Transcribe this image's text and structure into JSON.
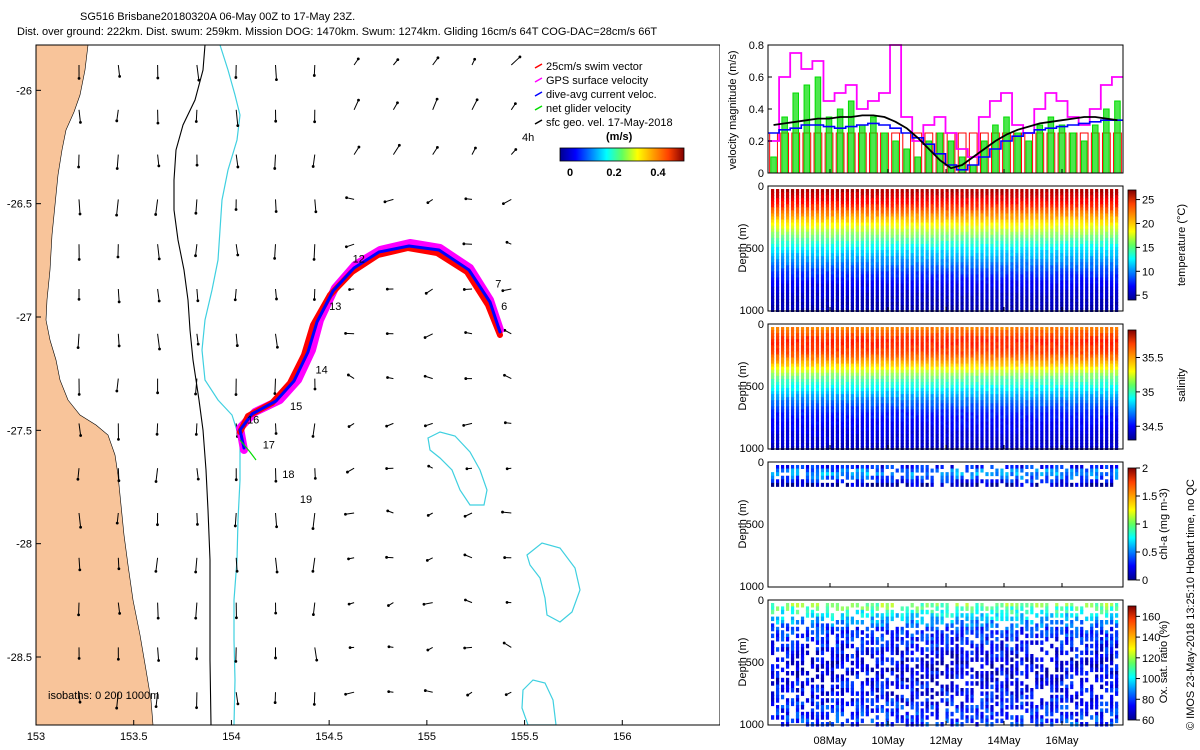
{
  "header": {
    "line1": "SG516 Brisbane20180320A 06-May 00Z to 17-May 23Z.",
    "line2": "Dist. over ground: 222km. Dist. swum: 259km. Mission DOG: 1470km. Swum: 1274km. Gliding 16cm/s 64T COG-DAC=28cm/s 66T"
  },
  "credit": "© IMOS 23-May-2018 13:25:10 Hobart time, no QC",
  "colors": {
    "land": "#f8c49a",
    "isobath_200": "#000000",
    "isobath_1000": "#3fd0e0",
    "swim": "#ff0000",
    "gps": "#ff00ff",
    "dac": "#0000ff",
    "net": "#00dd00",
    "sfc": "#000000"
  },
  "map": {
    "legend": {
      "items": [
        {
          "label": "25cm/s swim vector",
          "color": "#ff0000"
        },
        {
          "label": "GPS surface velocity",
          "color": "#ff00ff"
        },
        {
          "label": "dive-avg current veloc.",
          "color": "#0000ff"
        },
        {
          "label": "net glider velocity",
          "color": "#00dd00"
        },
        {
          "label": "sfc geo. vel. 17-May-2018",
          "color": "#000000"
        }
      ],
      "offset_label": "4h",
      "colorbar_title": "(m/s)",
      "colorbar_ticks": [
        "0",
        "0.2",
        "0.4"
      ]
    },
    "isobath_label": "isobaths: 0   200  1000m"
  },
  "chart_data": [
    {
      "type": "map",
      "title": "SG516 Brisbane20180320A 06-May 00Z to 17-May 23Z.",
      "xlim": [
        153,
        156.5
      ],
      "ylim": [
        -28.8,
        -25.8
      ],
      "xticks": [
        "153",
        "153.5",
        "154",
        "154.5",
        "155",
        "155.5",
        "156"
      ],
      "yticks": [
        "-26",
        "-26.5",
        "-27",
        "-27.5",
        "-28",
        "-28.5"
      ],
      "track": [
        [
          155.35,
          -27.05
        ],
        [
          155.3,
          -26.95
        ],
        [
          155.2,
          -26.8
        ],
        [
          155.1,
          -26.7
        ],
        [
          155.0,
          -26.66
        ],
        [
          154.85,
          -26.65
        ],
        [
          154.7,
          -26.7
        ],
        [
          154.55,
          -26.82
        ],
        [
          154.45,
          -26.98
        ],
        [
          154.38,
          -27.15
        ],
        [
          154.3,
          -27.3
        ],
        [
          154.2,
          -27.42
        ],
        [
          154.05,
          -27.48
        ],
        [
          154.04,
          -27.53
        ],
        [
          154.08,
          -27.6
        ]
      ],
      "day_labels": [
        {
          "label": "6",
          "lon": 155.38,
          "lat": -26.97
        },
        {
          "label": "7",
          "lon": 155.35,
          "lat": -26.87
        },
        {
          "label": "12",
          "lon": 154.62,
          "lat": -26.76
        },
        {
          "label": "13",
          "lon": 154.5,
          "lat": -26.97
        },
        {
          "label": "14",
          "lon": 154.43,
          "lat": -27.25
        },
        {
          "label": "15",
          "lon": 154.3,
          "lat": -27.41
        },
        {
          "label": "16",
          "lon": 154.08,
          "lat": -27.47
        },
        {
          "label": "17",
          "lon": 154.16,
          "lat": -27.58
        },
        {
          "label": "18",
          "lon": 154.26,
          "lat": -27.71
        },
        {
          "label": "19",
          "lon": 154.35,
          "lat": -27.82
        }
      ]
    },
    {
      "type": "line",
      "ylabel": "velocity magnitude (m/s)",
      "ylim": [
        0,
        0.8
      ],
      "yticks": [
        "0",
        "0.2",
        "0.4",
        "0.6",
        "0.8"
      ],
      "x_ticklabels": [
        "08May",
        "10May",
        "12May",
        "14May",
        "16May"
      ],
      "series": [
        {
          "name": "GPS surface velocity",
          "color": "#ff00ff",
          "values": [
            0.2,
            0.6,
            0.75,
            0.65,
            0.7,
            0.45,
            0.5,
            0.55,
            0.4,
            0.45,
            0.5,
            0.8,
            0.35,
            0.2,
            0.3,
            0.35,
            0.25,
            0.15,
            0.1,
            0.35,
            0.45,
            0.5,
            0.3,
            0.25,
            0.4,
            0.5,
            0.45,
            0.35,
            0.3,
            0.4,
            0.55,
            0.6
          ]
        },
        {
          "name": "net glider velocity",
          "color": "#00dd00",
          "values": [
            0.1,
            0.35,
            0.5,
            0.55,
            0.6,
            0.35,
            0.4,
            0.45,
            0.3,
            0.35,
            0.25,
            0.2,
            0.15,
            0.1,
            0.2,
            0.25,
            0.2,
            0.1,
            0.05,
            0.2,
            0.3,
            0.35,
            0.25,
            0.2,
            0.3,
            0.35,
            0.3,
            0.25,
            0.2,
            0.3,
            0.4,
            0.45
          ]
        },
        {
          "name": "dive-avg current veloc.",
          "color": "#0000ff",
          "values": [
            0.25,
            0.27,
            0.28,
            0.3,
            0.3,
            0.29,
            0.28,
            0.29,
            0.3,
            0.31,
            0.3,
            0.28,
            0.25,
            0.22,
            0.18,
            0.12,
            0.05,
            0.02,
            0.05,
            0.1,
            0.15,
            0.2,
            0.23,
            0.25,
            0.27,
            0.28,
            0.29,
            0.3,
            0.31,
            0.32,
            0.33,
            0.33
          ]
        },
        {
          "name": "sfc geo. vel.",
          "color": "#000000",
          "values": [
            0.3,
            0.31,
            0.32,
            0.33,
            0.34,
            0.34,
            0.35,
            0.35,
            0.36,
            0.36,
            0.35,
            0.32,
            0.28,
            0.22,
            0.15,
            0.08,
            0.03,
            0.05,
            0.1,
            0.15,
            0.2,
            0.24,
            0.27,
            0.29,
            0.31,
            0.32,
            0.33,
            0.34,
            0.35,
            0.35,
            0.34,
            0.33
          ]
        },
        {
          "name": "25cm/s swim vector",
          "color": "#ff0000",
          "values": [
            0.25,
            0.25,
            0.25,
            0.25,
            0.25,
            0.25,
            0.25,
            0.25,
            0.25,
            0.25,
            0.25,
            0.25,
            0.25,
            0.25,
            0.25,
            0.25,
            0.25,
            0.25,
            0.25,
            0.25,
            0.25,
            0.25,
            0.25,
            0.25,
            0.25,
            0.25,
            0.25,
            0.25,
            0.25,
            0.25,
            0.25,
            0.25
          ]
        }
      ]
    },
    {
      "type": "heatmap",
      "ylabel": "Depth (m)",
      "yticks": [
        "0",
        "500",
        "1000"
      ],
      "colorbar_label": "temperature (°C)",
      "colorbar_ticks": [
        "5",
        "10",
        "15",
        "20",
        "25"
      ],
      "clim": [
        4,
        27
      ],
      "profile": [
        [
          0,
          26
        ],
        [
          100,
          24
        ],
        [
          200,
          21
        ],
        [
          300,
          18
        ],
        [
          400,
          15
        ],
        [
          500,
          12
        ],
        [
          600,
          10
        ],
        [
          700,
          8
        ],
        [
          800,
          6.5
        ],
        [
          900,
          5.5
        ],
        [
          1000,
          5
        ]
      ]
    },
    {
      "type": "heatmap",
      "ylabel": "Depth (m)",
      "yticks": [
        "0",
        "500",
        "1000"
      ],
      "colorbar_label": "salinity",
      "colorbar_ticks": [
        "34.5",
        "35",
        "35.5"
      ],
      "clim": [
        34.3,
        35.9
      ],
      "profile": [
        [
          0,
          35.5
        ],
        [
          100,
          35.65
        ],
        [
          200,
          35.6
        ],
        [
          300,
          35.4
        ],
        [
          400,
          35.1
        ],
        [
          500,
          34.9
        ],
        [
          600,
          34.7
        ],
        [
          700,
          34.55
        ],
        [
          800,
          34.5
        ],
        [
          900,
          34.45
        ],
        [
          1000,
          34.4
        ]
      ]
    },
    {
      "type": "heatmap",
      "ylabel": "Depth (m)",
      "yticks": [
        "0",
        "500",
        "1000"
      ],
      "colorbar_label": "chl-a (mg m-3)",
      "colorbar_ticks": [
        "0",
        "0.5",
        "1",
        "1.5",
        "2"
      ],
      "clim": [
        0,
        2
      ],
      "profile": [
        [
          0,
          0.3
        ],
        [
          50,
          0.6
        ],
        [
          100,
          0.4
        ],
        [
          150,
          0.1
        ]
      ]
    },
    {
      "type": "heatmap",
      "ylabel": "Depth (m)",
      "yticks": [
        "0",
        "500",
        "1000"
      ],
      "colorbar_label": "Ox. sat. ratio (%)",
      "colorbar_ticks": [
        "60",
        "80",
        "100",
        "120",
        "140",
        "160"
      ],
      "clim": [
        60,
        170
      ],
      "profile": [
        [
          0,
          115
        ],
        [
          200,
          80
        ],
        [
          500,
          70
        ],
        [
          800,
          75
        ],
        [
          1000,
          80
        ]
      ]
    }
  ]
}
